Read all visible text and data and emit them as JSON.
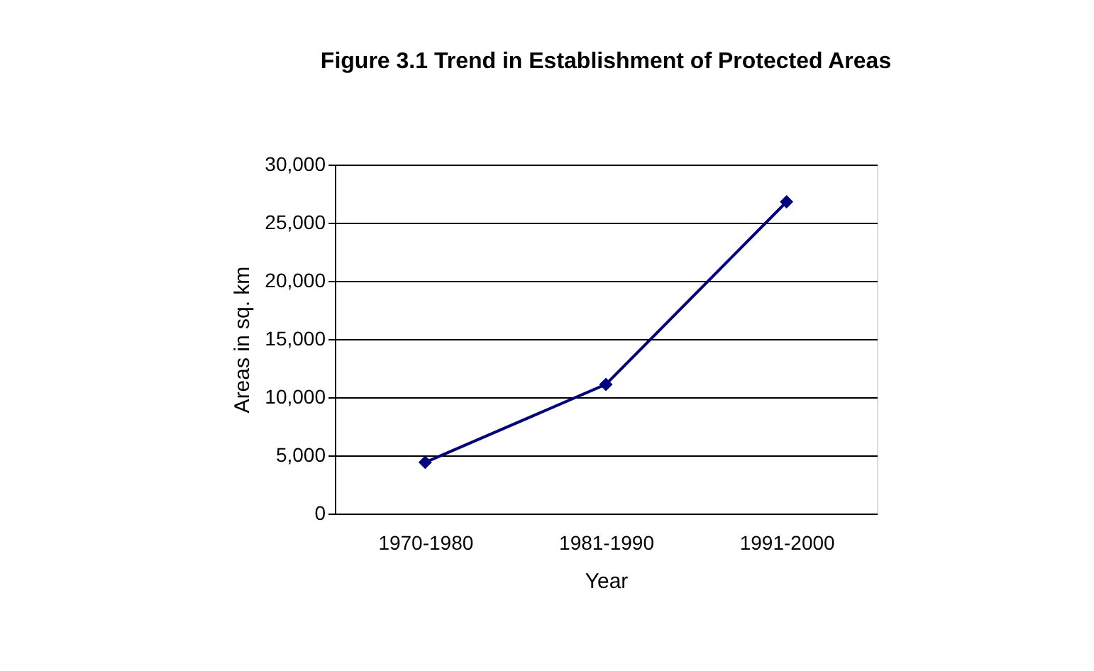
{
  "chart_data": {
    "type": "line",
    "title": "Figure 3.1 Trend in Establishment of Protected Areas",
    "xlabel": "Year",
    "ylabel": "Areas in sq. km",
    "categories": [
      "1970-1980",
      "1981-1990",
      "1991-2000"
    ],
    "series": [
      {
        "color": "#000080",
        "values": [
          4400,
          11100,
          26800
        ]
      }
    ],
    "ylim": [
      0,
      30000
    ],
    "yticks": [
      0,
      {
        "value": 5000,
        "label": "5,000"
      },
      {
        "value": 10000,
        "label": "10,000"
      },
      {
        "value": 15000,
        "label": "15,000"
      },
      {
        "value": 20000,
        "label": "20,000"
      },
      {
        "value": 25000,
        "label": "25,000"
      },
      {
        "value": 30000,
        "label": "30,000"
      }
    ],
    "grid": "y",
    "marker": "diamond",
    "line_style": "solid"
  }
}
